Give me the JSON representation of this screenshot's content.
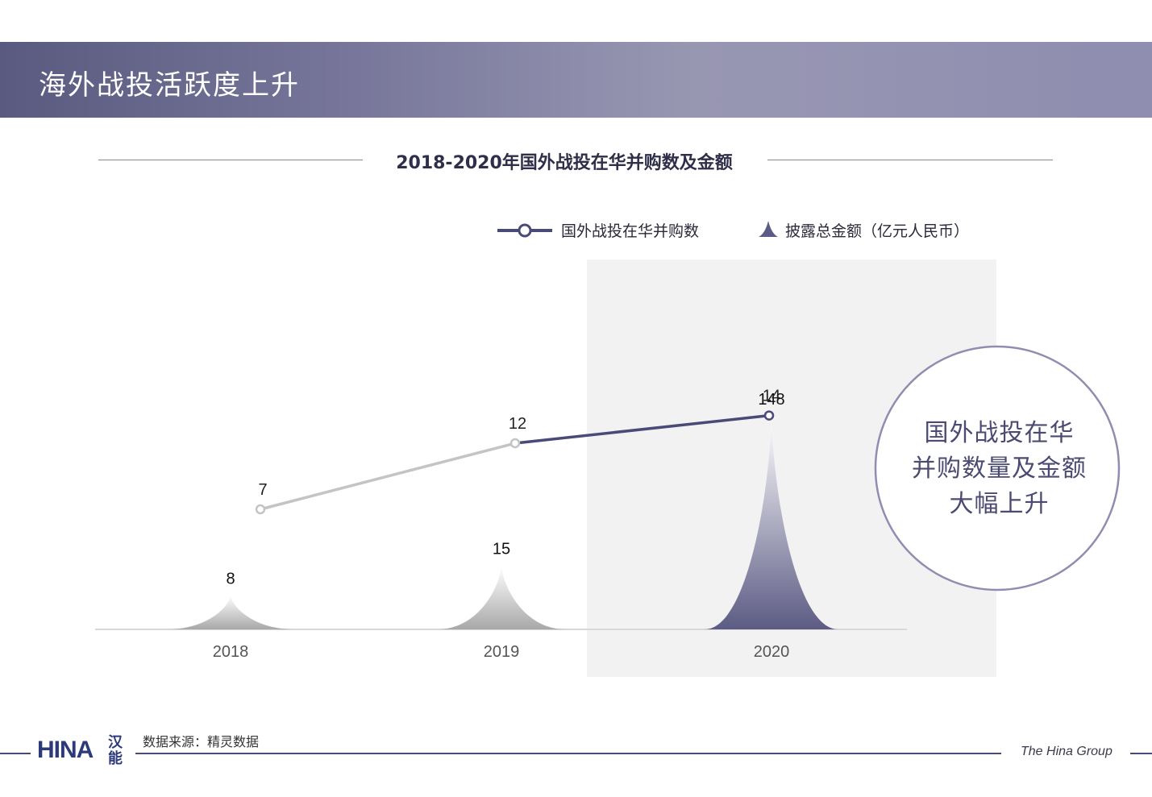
{
  "banner": {
    "title": "海外战投活跃度上升"
  },
  "colors": {
    "accent": "#4a4a78",
    "line_past": "#c4c4c4",
    "line_current": "#4a4a78",
    "highlight_bg": "#f2f2f2",
    "peak_past": "#a8a8a8",
    "peak_current": "#5c5b84"
  },
  "chart_data": {
    "type": "line+area",
    "title": "2018-2020年国外战投在华并购数及金额",
    "categories": [
      "2018",
      "2019",
      "2020"
    ],
    "highlight_category": "2020",
    "series": [
      {
        "name": "国外战投在华并购数",
        "kind": "line",
        "values": [
          7,
          12,
          14
        ]
      },
      {
        "name": "披露总金额（亿元人民币）",
        "kind": "peak",
        "values": [
          8,
          15,
          148
        ]
      }
    ],
    "legend": {
      "line_label": "国外战投在华并购数",
      "peak_label": "披露总金额（亿元人民币）",
      "placement": "top-right"
    },
    "grid": false
  },
  "callout": {
    "lines": [
      "国外战投在华",
      "并购数量及金额",
      "大幅上升"
    ]
  },
  "footer": {
    "source": "数据来源：精灵数据",
    "brand": "The Hina Group",
    "logo_text": "HINA",
    "logo_cn": "汉能"
  }
}
